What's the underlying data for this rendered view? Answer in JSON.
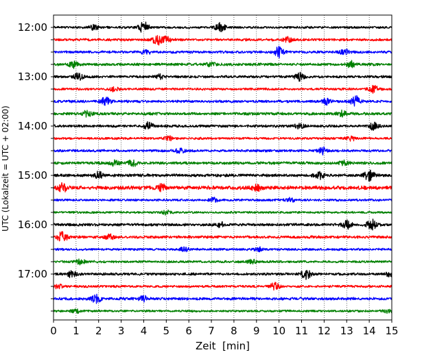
{
  "chart_data": {
    "type": "line",
    "title": "",
    "xlabel": "Zeit  [min]",
    "ylabel": "UTC (Lokalzeit = UTC + 02:00)",
    "xlim": [
      0,
      15
    ],
    "xticks": [
      0,
      1,
      2,
      3,
      4,
      5,
      6,
      7,
      8,
      9,
      10,
      11,
      12,
      13,
      14,
      15
    ],
    "x_tick_labels": [
      "0",
      "1",
      "2",
      "3",
      "4",
      "5",
      "6",
      "7",
      "8",
      "9",
      "10",
      "11",
      "12",
      "13",
      "14",
      "15"
    ],
    "grid": "vertical dotted at each minute",
    "trace_interval_minutes": 15,
    "hour_ticks": [
      "12:00",
      "13:00",
      "14:00",
      "15:00",
      "16:00",
      "17:00"
    ],
    "trace_colors": [
      "#000000",
      "#ff0000",
      "#0000ff",
      "#008000"
    ],
    "traces": [
      {
        "start": "12:00",
        "color": "#000000",
        "amplitude": 1.0,
        "events": [
          [
            4.0,
            4.0
          ],
          [
            7.4,
            3.0
          ],
          [
            1.8,
            1.5
          ]
        ]
      },
      {
        "start": "12:15",
        "color": "#ff0000",
        "amplitude": 1.1,
        "events": [
          [
            4.6,
            3.2
          ],
          [
            5.0,
            2.0
          ],
          [
            10.4,
            1.6
          ]
        ]
      },
      {
        "start": "12:30",
        "color": "#0000ff",
        "amplitude": 1.1,
        "events": [
          [
            10.0,
            3.4
          ],
          [
            4.1,
            1.6
          ],
          [
            12.9,
            1.6
          ]
        ]
      },
      {
        "start": "12:45",
        "color": "#008000",
        "amplitude": 1.2,
        "events": [
          [
            0.9,
            1.8
          ],
          [
            13.2,
            1.8
          ],
          [
            7.0,
            1.3
          ]
        ]
      },
      {
        "start": "13:00",
        "color": "#000000",
        "amplitude": 1.1,
        "events": [
          [
            1.1,
            2.2
          ],
          [
            10.9,
            2.4
          ],
          [
            4.7,
            1.4
          ]
        ]
      },
      {
        "start": "13:15",
        "color": "#ff0000",
        "amplitude": 1.0,
        "events": [
          [
            14.2,
            2.2
          ],
          [
            2.7,
            1.3
          ]
        ]
      },
      {
        "start": "13:30",
        "color": "#0000ff",
        "amplitude": 1.1,
        "events": [
          [
            2.3,
            2.8
          ],
          [
            13.4,
            3.4
          ],
          [
            12.1,
            1.8
          ]
        ]
      },
      {
        "start": "13:45",
        "color": "#008000",
        "amplitude": 1.2,
        "events": [
          [
            1.5,
            1.8
          ],
          [
            12.8,
            1.7
          ]
        ]
      },
      {
        "start": "14:00",
        "color": "#000000",
        "amplitude": 1.1,
        "events": [
          [
            4.2,
            2.4
          ],
          [
            14.2,
            2.4
          ],
          [
            10.9,
            1.5
          ]
        ]
      },
      {
        "start": "14:15",
        "color": "#ff0000",
        "amplitude": 1.0,
        "events": [
          [
            5.1,
            1.4
          ],
          [
            13.2,
            1.4
          ]
        ]
      },
      {
        "start": "14:30",
        "color": "#0000ff",
        "amplitude": 1.1,
        "events": [
          [
            11.9,
            2.6
          ],
          [
            5.6,
            1.4
          ]
        ]
      },
      {
        "start": "14:45",
        "color": "#008000",
        "amplitude": 1.2,
        "events": [
          [
            2.7,
            1.6
          ],
          [
            3.5,
            2.0
          ],
          [
            12.9,
            1.3
          ]
        ]
      },
      {
        "start": "15:00",
        "color": "#000000",
        "amplitude": 1.3,
        "events": [
          [
            14.0,
            3.4
          ],
          [
            2.0,
            2.2
          ],
          [
            11.8,
            2.0
          ]
        ]
      },
      {
        "start": "15:15",
        "color": "#ff0000",
        "amplitude": 1.6,
        "events": [
          [
            0.4,
            2.6
          ],
          [
            4.8,
            2.0
          ],
          [
            9.0,
            1.8
          ]
        ]
      },
      {
        "start": "15:30",
        "color": "#0000ff",
        "amplitude": 1.0,
        "events": [
          [
            7.1,
            1.4
          ],
          [
            10.5,
            1.2
          ]
        ]
      },
      {
        "start": "15:45",
        "color": "#008000",
        "amplitude": 0.9,
        "events": [
          [
            5.0,
            1.3
          ]
        ]
      },
      {
        "start": "16:00",
        "color": "#000000",
        "amplitude": 1.2,
        "events": [
          [
            14.1,
            3.4
          ],
          [
            13.0,
            2.6
          ],
          [
            7.4,
            1.4
          ]
        ]
      },
      {
        "start": "16:15",
        "color": "#ff0000",
        "amplitude": 1.2,
        "events": [
          [
            0.4,
            3.6
          ],
          [
            2.5,
            1.5
          ]
        ]
      },
      {
        "start": "16:30",
        "color": "#0000ff",
        "amplitude": 1.0,
        "events": [
          [
            5.8,
            1.3
          ],
          [
            9.1,
            1.2
          ]
        ]
      },
      {
        "start": "16:45",
        "color": "#008000",
        "amplitude": 1.0,
        "events": [
          [
            1.2,
            1.5
          ],
          [
            8.8,
            1.3
          ]
        ]
      },
      {
        "start": "17:00",
        "color": "#000000",
        "amplitude": 1.1,
        "events": [
          [
            11.2,
            3.6
          ],
          [
            0.8,
            2.0
          ],
          [
            14.9,
            1.4
          ]
        ]
      },
      {
        "start": "17:15",
        "color": "#ff0000",
        "amplitude": 1.0,
        "events": [
          [
            9.8,
            2.4
          ],
          [
            0.2,
            1.2
          ]
        ]
      },
      {
        "start": "17:30",
        "color": "#0000ff",
        "amplitude": 1.2,
        "events": [
          [
            1.9,
            2.5
          ],
          [
            4.0,
            1.6
          ]
        ]
      },
      {
        "start": "17:45",
        "color": "#008000",
        "amplitude": 0.9,
        "events": [
          [
            1.0,
            1.3
          ],
          [
            14.8,
            1.2
          ]
        ]
      }
    ]
  }
}
